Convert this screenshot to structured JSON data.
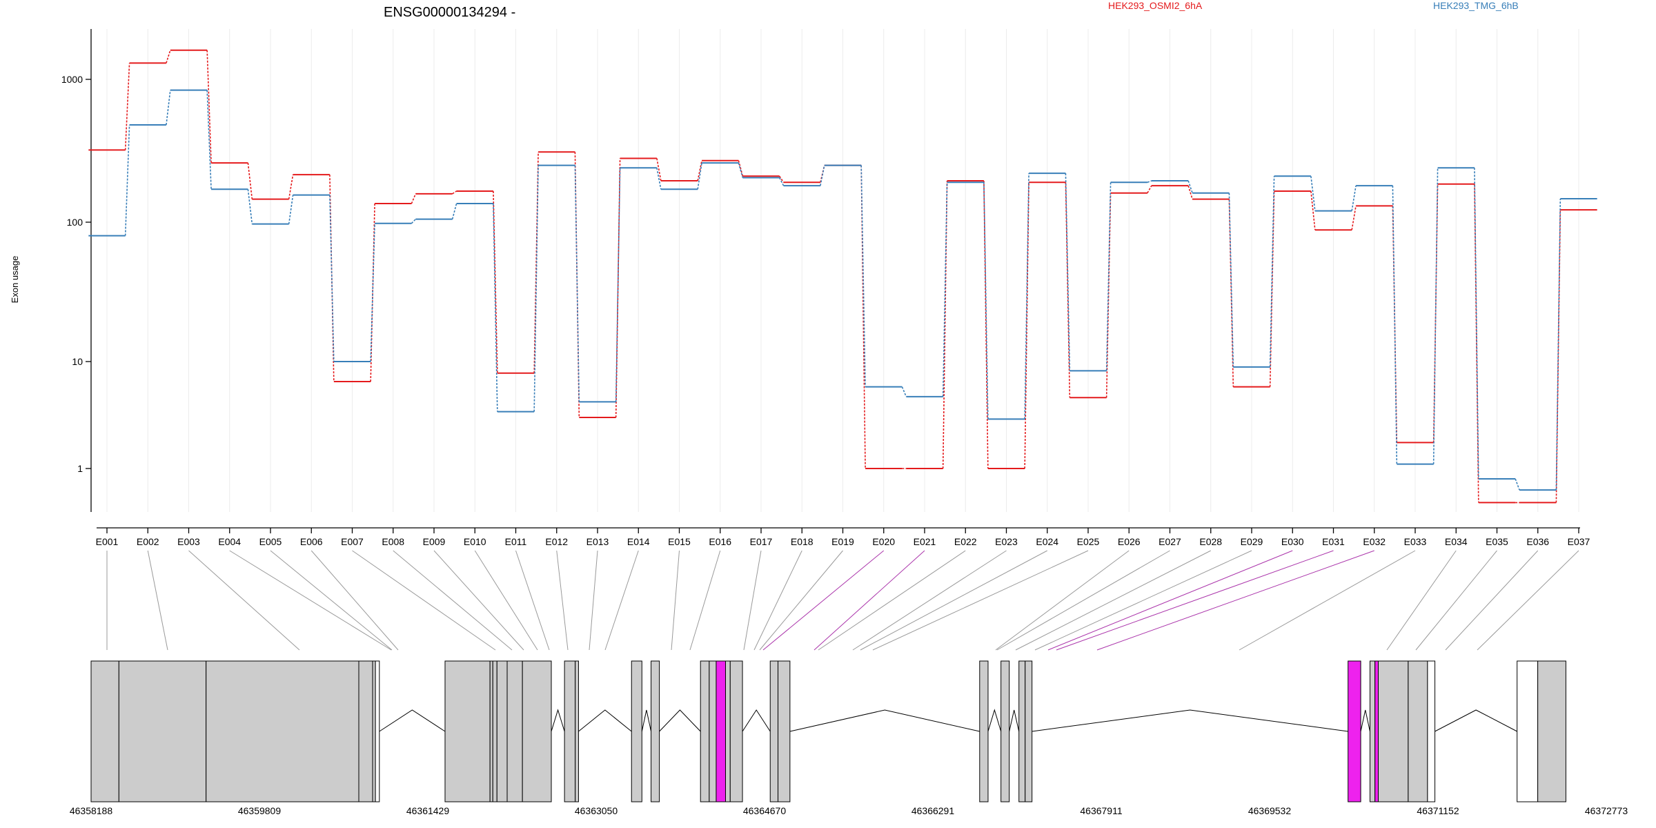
{
  "chart_data": {
    "type": "line",
    "title": "ENSG00000134294 -",
    "xlabel": "",
    "ylabel": "Exon usage",
    "y_scale": "log",
    "ylim": [
      0.5,
      2200
    ],
    "y_ticks": [
      {
        "value": 1,
        "label": "1"
      },
      {
        "value": 10,
        "label": "10"
      },
      {
        "value": 100,
        "label": "100"
      },
      {
        "value": 1000,
        "label": "1000"
      }
    ],
    "grid": "vertical",
    "legend_placement": "top",
    "categories": [
      "E001",
      "E002",
      "E003",
      "E004",
      "E005",
      "E006",
      "E007",
      "E008",
      "E009",
      "E010",
      "E011",
      "E012",
      "E013",
      "E014",
      "E015",
      "E016",
      "E017",
      "E018",
      "E019",
      "E020",
      "E021",
      "E022",
      "E023",
      "E024",
      "E025",
      "E026",
      "E027",
      "E028",
      "E029",
      "E030",
      "E031",
      "E032",
      "E033",
      "E034",
      "E035",
      "E036",
      "E037"
    ],
    "series": [
      {
        "name": "HEK293_OSMI2_6hA",
        "color": "#e41a1c",
        "values": [
          320,
          1300,
          1600,
          260,
          145,
          215,
          6.5,
          135,
          158,
          165,
          7.8,
          310,
          3.0,
          280,
          195,
          270,
          210,
          190,
          250,
          1.0,
          1.0,
          195,
          1.0,
          190,
          4.6,
          160,
          180,
          145,
          5.8,
          165,
          88,
          130,
          1.75,
          185,
          0.48,
          0.48,
          122
        ]
      },
      {
        "name": "HEK293_TMG_6hB",
        "color": "#377eb8",
        "values": [
          80,
          480,
          840,
          170,
          97,
          155,
          10.0,
          98,
          105,
          135,
          3.4,
          250,
          4.2,
          240,
          170,
          260,
          205,
          180,
          250,
          5.8,
          4.7,
          190,
          2.9,
          220,
          8.2,
          190,
          195,
          160,
          8.9,
          210,
          120,
          180,
          1.1,
          240,
          0.8,
          0.63,
          146
        ]
      }
    ],
    "gene_model": {
      "coordinate_ticks": [
        "46358188",
        "46359809",
        "46361429",
        "46363050",
        "46364670",
        "46366291",
        "46367911",
        "46369532",
        "46371152",
        "46372773"
      ],
      "coord_range": [
        46358188,
        46372773
      ],
      "highlight_color": "#ee22ee",
      "box_color": "#cccccc",
      "highlighted_exons": [
        "E020",
        "E021",
        "E030",
        "E031",
        "E032"
      ]
    }
  }
}
